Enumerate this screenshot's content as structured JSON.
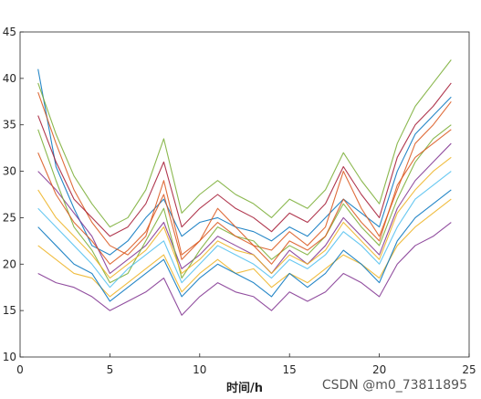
{
  "chart_data": {
    "type": "line",
    "title": "",
    "xlabel": "时间/h",
    "ylabel": "",
    "xlim": [
      0,
      25
    ],
    "ylim": [
      10,
      45
    ],
    "xticks": [
      0,
      5,
      10,
      15,
      20,
      25
    ],
    "yticks": [
      10,
      15,
      20,
      25,
      30,
      35,
      40,
      45
    ],
    "grid": false,
    "legend": "none",
    "x": [
      1,
      2,
      3,
      4,
      5,
      6,
      7,
      8,
      9,
      10,
      11,
      12,
      13,
      14,
      15,
      16,
      17,
      18,
      19,
      20,
      21,
      22,
      23,
      24
    ],
    "colors": [
      "#0072BD",
      "#D95319",
      "#EDB120",
      "#7E2F8E",
      "#77AC30",
      "#4DBEEE",
      "#A2142F"
    ],
    "series": [
      {
        "values": [
          41.0,
          30.5,
          26.0,
          22.0,
          21.0,
          22.5,
          25.0,
          27.0,
          23.0,
          24.5,
          25.0,
          24.0,
          23.5,
          22.5,
          24.0,
          23.0,
          25.0,
          27.0,
          25.5,
          24.0,
          30.0,
          34.0,
          36.0,
          38.0
        ]
      },
      {
        "values": [
          38.5,
          33.0,
          28.0,
          24.5,
          22.0,
          21.0,
          23.0,
          29.0,
          21.0,
          22.5,
          26.0,
          24.0,
          22.0,
          21.5,
          23.5,
          22.0,
          24.0,
          30.0,
          26.0,
          23.0,
          28.0,
          33.0,
          35.0,
          37.5
        ]
      },
      {
        "values": [
          22.0,
          20.5,
          19.0,
          18.5,
          16.5,
          18.0,
          19.5,
          21.0,
          17.0,
          19.0,
          20.5,
          19.0,
          19.5,
          17.5,
          19.0,
          18.0,
          19.5,
          21.0,
          20.0,
          18.5,
          22.0,
          24.0,
          25.5,
          27.0
        ]
      },
      {
        "values": [
          30.0,
          28.0,
          25.5,
          23.0,
          19.0,
          20.5,
          22.0,
          24.5,
          19.5,
          21.0,
          23.0,
          22.0,
          21.0,
          19.0,
          21.5,
          20.0,
          22.0,
          25.0,
          23.0,
          21.0,
          26.0,
          29.0,
          31.0,
          33.0
        ]
      },
      {
        "values": [
          34.5,
          29.0,
          24.0,
          21.5,
          18.0,
          19.0,
          22.5,
          26.0,
          18.5,
          21.5,
          24.0,
          23.0,
          22.5,
          20.5,
          22.0,
          21.0,
          23.0,
          26.5,
          24.0,
          22.0,
          27.0,
          31.0,
          33.5,
          35.0
        ]
      },
      {
        "values": [
          26.0,
          24.0,
          22.0,
          20.0,
          17.5,
          19.5,
          21.0,
          22.5,
          18.0,
          20.0,
          22.0,
          21.0,
          20.0,
          18.5,
          20.5,
          19.5,
          21.0,
          23.5,
          22.0,
          20.0,
          24.0,
          27.0,
          28.5,
          30.0
        ]
      },
      {
        "values": [
          36.0,
          31.0,
          27.0,
          25.0,
          23.0,
          24.0,
          26.5,
          31.0,
          24.0,
          26.0,
          27.5,
          26.0,
          25.0,
          23.5,
          25.5,
          24.5,
          26.5,
          30.5,
          27.5,
          25.0,
          31.5,
          35.0,
          37.0,
          39.5
        ]
      },
      {
        "values": [
          24.0,
          22.0,
          20.0,
          19.0,
          16.0,
          17.5,
          19.0,
          20.5,
          16.5,
          18.5,
          20.0,
          19.0,
          18.0,
          16.5,
          19.0,
          17.5,
          19.0,
          21.5,
          20.0,
          18.0,
          22.5,
          25.0,
          26.5,
          28.0
        ]
      },
      {
        "values": [
          32.0,
          27.5,
          24.5,
          22.5,
          20.0,
          21.5,
          23.5,
          27.5,
          20.5,
          22.5,
          24.5,
          23.0,
          22.0,
          20.0,
          22.5,
          21.5,
          23.0,
          27.0,
          24.5,
          22.5,
          28.5,
          31.5,
          33.0,
          34.5
        ]
      },
      {
        "values": [
          28.0,
          25.0,
          23.0,
          21.0,
          18.5,
          20.0,
          21.5,
          24.0,
          19.0,
          20.5,
          22.5,
          21.5,
          21.0,
          19.0,
          21.0,
          20.0,
          21.5,
          24.5,
          22.5,
          20.5,
          25.5,
          28.0,
          30.0,
          31.5
        ]
      },
      {
        "values": [
          19.0,
          18.0,
          17.5,
          16.5,
          15.0,
          16.0,
          17.0,
          18.5,
          14.5,
          16.5,
          18.0,
          17.0,
          16.5,
          15.0,
          17.0,
          16.0,
          17.0,
          19.0,
          18.0,
          16.5,
          20.0,
          22.0,
          23.0,
          24.5
        ]
      },
      {
        "values": [
          39.5,
          34.0,
          29.5,
          26.5,
          24.0,
          25.0,
          28.0,
          33.5,
          25.5,
          27.5,
          29.0,
          27.5,
          26.5,
          25.0,
          27.0,
          26.0,
          28.0,
          32.0,
          29.0,
          26.5,
          33.0,
          37.0,
          39.5,
          42.0
        ]
      }
    ]
  },
  "watermark": "CSDN @m0_73811895"
}
